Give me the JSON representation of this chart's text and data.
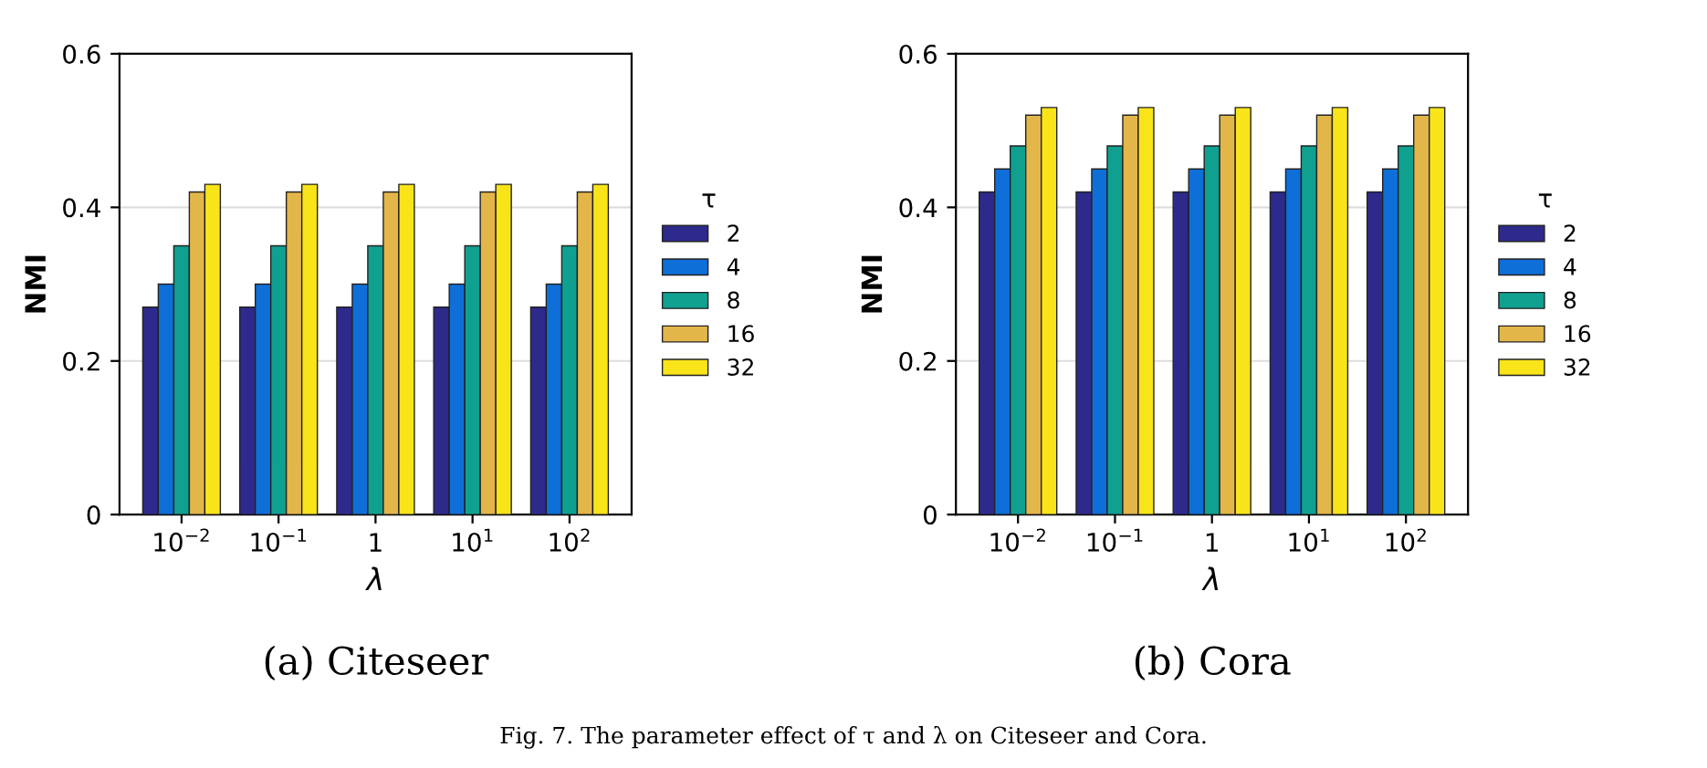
{
  "chart_data": [
    {
      "type": "bar",
      "title": "(a) Citeseer",
      "xlabel": "λ",
      "ylabel": "NMI",
      "legend_title": "τ",
      "categories": [
        "10$^{−2}$",
        "10$^{−1}$",
        "1",
        "10$^{1}$",
        "10$^{2}$"
      ],
      "series": [
        {
          "name": "2",
          "color": "#2e2a8c",
          "values": [
            0.27,
            0.27,
            0.27,
            0.27,
            0.27
          ]
        },
        {
          "name": "4",
          "color": "#0f6fd8",
          "values": [
            0.3,
            0.3,
            0.3,
            0.3,
            0.3
          ]
        },
        {
          "name": "8",
          "color": "#10a090",
          "values": [
            0.35,
            0.35,
            0.35,
            0.35,
            0.35
          ]
        },
        {
          "name": "16",
          "color": "#e3b64a",
          "values": [
            0.42,
            0.42,
            0.42,
            0.42,
            0.42
          ]
        },
        {
          "name": "32",
          "color": "#f9e419",
          "values": [
            0.43,
            0.43,
            0.43,
            0.43,
            0.43
          ]
        }
      ],
      "ylim": [
        0,
        0.6
      ],
      "yticks": [
        0,
        0.2,
        0.4,
        0.6
      ],
      "grid": "y",
      "legend": "right",
      "annotations": [
        "Fig. 7. The parameter effect of τ and λ on Citeseer and Cora."
      ]
    },
    {
      "type": "bar",
      "title": "(b) Cora",
      "xlabel": "λ",
      "ylabel": "NMI",
      "legend_title": "τ",
      "categories": [
        "10$^{−2}$",
        "10$^{−1}$",
        "1",
        "10$^{1}$",
        "10$^{2}$"
      ],
      "series": [
        {
          "name": "2",
          "color": "#2e2a8c",
          "values": [
            0.42,
            0.42,
            0.42,
            0.42,
            0.42
          ]
        },
        {
          "name": "4",
          "color": "#0f6fd8",
          "values": [
            0.45,
            0.45,
            0.45,
            0.45,
            0.45
          ]
        },
        {
          "name": "8",
          "color": "#10a090",
          "values": [
            0.48,
            0.48,
            0.48,
            0.48,
            0.48
          ]
        },
        {
          "name": "16",
          "color": "#e3b64a",
          "values": [
            0.52,
            0.52,
            0.52,
            0.52,
            0.52
          ]
        },
        {
          "name": "32",
          "color": "#f9e419",
          "values": [
            0.53,
            0.53,
            0.53,
            0.53,
            0.53
          ]
        }
      ],
      "ylim": [
        0,
        0.6
      ],
      "yticks": [
        0,
        0.2,
        0.4,
        0.6
      ],
      "grid": "y",
      "legend": "right"
    }
  ]
}
